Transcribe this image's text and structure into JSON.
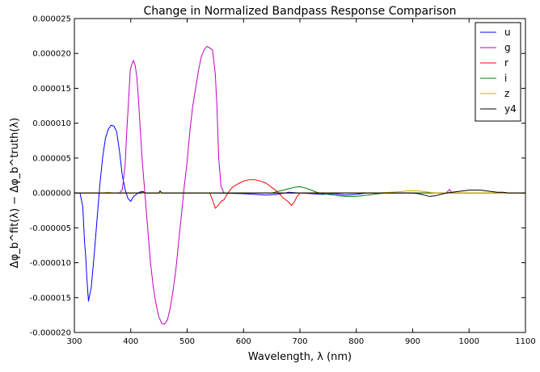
{
  "chart_data": {
    "type": "line",
    "title": "Change in Normalized Bandpass Response Comparison",
    "xlabel": "Wavelength, λ (nm)",
    "ylabel": "Δφ_b^fit(λ) − Δφ_b^truth(λ)",
    "xlim": [
      300,
      1100
    ],
    "ylim": [
      -2e-05,
      2.5e-05
    ],
    "xticks": [
      300,
      400,
      500,
      600,
      700,
      800,
      900,
      1000,
      1100
    ],
    "xtick_labels": [
      "300",
      "400",
      "500",
      "600",
      "700",
      "800",
      "900",
      "1000",
      "1100"
    ],
    "yticks": [
      -2e-05,
      -1.5e-05,
      -1e-05,
      -5e-06,
      0,
      5e-06,
      1e-05,
      1.5e-05,
      2e-05,
      2.5e-05
    ],
    "ytick_labels": [
      "-0.000020",
      "-0.000015",
      "-0.000010",
      "-0.000005",
      "0.000000",
      "0.000005",
      "0.000010",
      "0.000015",
      "0.000020",
      "0.000025"
    ],
    "grid": false,
    "legend_position": "top-right",
    "series": [
      {
        "name": "u",
        "color": "#0000ff",
        "x": [
          300,
          310,
          315,
          318,
          320,
          322,
          325,
          330,
          335,
          340,
          345,
          350,
          355,
          360,
          365,
          370,
          375,
          380,
          385,
          390,
          395,
          400,
          405,
          410,
          415,
          420,
          425,
          430,
          450,
          500,
          550,
          600,
          620,
          640,
          660,
          680,
          700,
          720,
          740,
          760,
          780,
          800,
          820,
          850
        ],
        "y": [
          0,
          0,
          -2e-06,
          -7e-06,
          -9e-06,
          -1.2e-05,
          -1.55e-05,
          -1.35e-05,
          -9e-06,
          -4e-06,
          1e-06,
          5e-06,
          7.8e-06,
          9.1e-06,
          9.7e-06,
          9.6e-06,
          8.8e-06,
          6e-06,
          2.5e-06,
          5e-07,
          -8e-07,
          -1.2e-06,
          -5e-07,
          -2e-07,
          1e-07,
          2e-07,
          0,
          0,
          0,
          0,
          0,
          -1e-07,
          -2e-07,
          -3e-07,
          -2e-07,
          1e-07,
          0,
          -1e-07,
          -2e-07,
          -1e-07,
          -3e-07,
          -2e-07,
          0,
          0
        ]
      },
      {
        "name": "g",
        "color": "#bf00bf",
        "x": [
          300,
          380,
          385,
          390,
          393,
          396,
          399,
          402,
          405,
          408,
          411,
          414,
          417,
          420,
          425,
          430,
          435,
          440,
          445,
          450,
          455,
          460,
          465,
          470,
          475,
          480,
          485,
          490,
          495,
          500,
          505,
          510,
          515,
          520,
          525,
          530,
          535,
          540,
          545,
          550,
          553,
          556,
          560,
          565,
          570,
          600,
          700,
          800,
          900,
          960,
          965,
          970,
          1100
        ],
        "y": [
          0,
          0,
          5e-07,
          4e-06,
          9e-06,
          1.3e-05,
          1.75e-05,
          1.85e-05,
          1.9e-05,
          1.82e-05,
          1.65e-05,
          1.3e-05,
          9e-06,
          5e-06,
          0,
          -5e-06,
          -1e-05,
          -1.35e-05,
          -1.6e-05,
          -1.78e-05,
          -1.87e-05,
          -1.88e-05,
          -1.82e-05,
          -1.65e-05,
          -1.4e-05,
          -1.1e-05,
          -7e-06,
          -3e-06,
          1e-06,
          4.5e-06,
          9e-06,
          1.25e-05,
          1.5e-05,
          1.75e-05,
          1.95e-05,
          2.05e-05,
          2.1e-05,
          2.08e-05,
          2.05e-05,
          1.7e-05,
          1.2e-05,
          5e-06,
          1e-06,
          0,
          0,
          0,
          0,
          0,
          0,
          0,
          5e-07,
          0,
          0
        ]
      },
      {
        "name": "r",
        "color": "#ff0000",
        "x": [
          300,
          540,
          545,
          550,
          555,
          560,
          565,
          570,
          575,
          580,
          590,
          600,
          610,
          620,
          630,
          640,
          650,
          660,
          670,
          680,
          685,
          690,
          695,
          700,
          710,
          720,
          1100
        ],
        "y": [
          0,
          0,
          -1e-06,
          -2.2e-06,
          -1.8e-06,
          -1.2e-06,
          -1e-06,
          -3e-07,
          3e-07,
          8e-07,
          1.3e-06,
          1.7e-06,
          1.9e-06,
          1.9e-06,
          1.7e-06,
          1.4e-06,
          8e-07,
          2e-07,
          -7e-07,
          -1.3e-06,
          -1.8e-06,
          -1.3e-06,
          -5e-07,
          0,
          0,
          0,
          0
        ]
      },
      {
        "name": "i",
        "color": "#008000",
        "x": [
          300,
          650,
          660,
          670,
          680,
          690,
          700,
          710,
          720,
          730,
          740,
          750,
          760,
          770,
          780,
          790,
          800,
          810,
          820,
          830,
          840,
          850,
          1100
        ],
        "y": [
          0,
          0,
          2e-07,
          4e-07,
          6e-07,
          8e-07,
          9e-07,
          7e-07,
          4e-07,
          1e-07,
          -1e-07,
          -2e-07,
          -3e-07,
          -4e-07,
          -5e-07,
          -5e-07,
          -5e-07,
          -4e-07,
          -3e-07,
          -2e-07,
          -1e-07,
          0,
          0
        ]
      },
      {
        "name": "z",
        "color": "#d4b000",
        "x": [
          300,
          350,
          360,
          370,
          380,
          820,
          840,
          860,
          880,
          890,
          900,
          910,
          920,
          930,
          940,
          950,
          1100
        ],
        "y": [
          0,
          0,
          1e-07,
          0,
          0,
          0,
          0,
          1e-07,
          2e-07,
          3e-07,
          3e-07,
          3e-07,
          2e-07,
          1e-07,
          0,
          0,
          0
        ]
      },
      {
        "name": "y4",
        "color": "#000000",
        "x": [
          300,
          420,
          422,
          425,
          450,
          452,
          455,
          500,
          900,
          910,
          920,
          930,
          940,
          950,
          960,
          970,
          980,
          990,
          1000,
          1010,
          1020,
          1030,
          1040,
          1050,
          1060,
          1070,
          1080,
          1100
        ],
        "y": [
          0,
          0,
          2e-07,
          0,
          0,
          3e-07,
          0,
          0,
          0,
          -1e-07,
          -3e-07,
          -5e-07,
          -4e-07,
          -2e-07,
          0,
          1e-07,
          2e-07,
          3e-07,
          4e-07,
          4e-07,
          4e-07,
          3e-07,
          2e-07,
          1e-07,
          1e-07,
          0,
          0,
          0
        ]
      }
    ]
  }
}
